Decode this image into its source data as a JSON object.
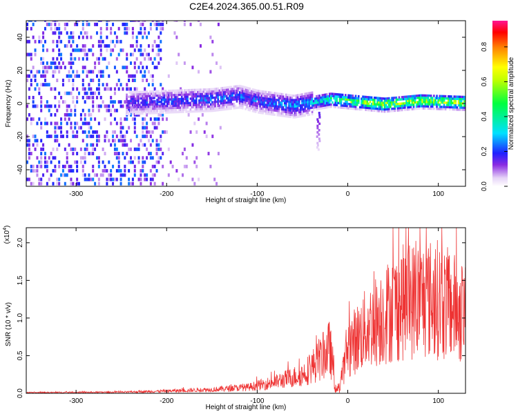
{
  "title": "C2E4.2024.365.00.51.R09",
  "colorbar": {
    "label": "Normalized spectral amplitude",
    "ticks": [
      "0.0",
      "0.2",
      "0.4",
      "0.6",
      "0.8"
    ],
    "range": [
      0,
      0.95
    ]
  },
  "chart_data": [
    {
      "type": "heatmap",
      "xlabel": "Height of straight line (km)",
      "ylabel": "Frequency (Hz)",
      "xlim": [
        -355,
        130
      ],
      "ylim": [
        -50,
        50
      ],
      "xticks": [
        -300,
        -200,
        -100,
        0,
        100
      ],
      "xtick_labels": [
        "-300",
        "-200",
        "-100",
        "0",
        "100"
      ],
      "yticks": [
        -40,
        -20,
        0,
        20,
        40
      ],
      "ytick_labels": [
        "-40",
        "-20",
        "0",
        "20",
        "40"
      ],
      "noise_region": {
        "x_range": [
          -355,
          -205
        ],
        "freq_range": [
          -50,
          50
        ],
        "amplitude_range": [
          0.05,
          0.25
        ]
      },
      "signal_band": {
        "x_range": [
          -245,
          130
        ],
        "center_freq": [
          {
            "x": -245,
            "f": 0
          },
          {
            "x": -200,
            "f": 1
          },
          {
            "x": -150,
            "f": 2
          },
          {
            "x": -120,
            "f": 4
          },
          {
            "x": -100,
            "f": 1
          },
          {
            "x": -60,
            "f": -2
          },
          {
            "x": -40,
            "f": 0
          },
          {
            "x": -20,
            "f": 2
          },
          {
            "x": 0,
            "f": 1
          },
          {
            "x": 40,
            "f": -1
          },
          {
            "x": 80,
            "f": 1
          },
          {
            "x": 130,
            "f": 0
          }
        ],
        "peak_amplitude": [
          {
            "x": -245,
            "a": 0.25
          },
          {
            "x": -150,
            "a": 0.3
          },
          {
            "x": -100,
            "a": 0.3
          },
          {
            "x": -40,
            "a": 0.4
          },
          {
            "x": 0,
            "a": 0.7
          },
          {
            "x": 40,
            "a": 0.8
          },
          {
            "x": 80,
            "a": 0.8
          },
          {
            "x": 130,
            "a": 0.8
          }
        ]
      }
    },
    {
      "type": "line",
      "xlabel": "Height of straight line (km)",
      "ylabel": "SNR (10 * v/v)",
      "y_multiplier_label": "(x10",
      "y_multiplier_exp": "4",
      "y_multiplier_close": ")",
      "xlim": [
        -355,
        130
      ],
      "ylim": [
        0,
        2.2
      ],
      "xticks": [
        -300,
        -200,
        -100,
        0,
        100
      ],
      "xtick_labels": [
        "-300",
        "-200",
        "-100",
        "0",
        "100"
      ],
      "yticks": [
        0,
        0.5,
        1.0,
        1.5,
        2.0
      ],
      "ytick_labels": [
        "0.0",
        "0.5",
        "1.0",
        "1.5",
        "2.0"
      ],
      "color": "#ee3333",
      "envelope": [
        {
          "x": -355,
          "y": 0.01
        },
        {
          "x": -250,
          "y": 0.015
        },
        {
          "x": -200,
          "y": 0.03
        },
        {
          "x": -150,
          "y": 0.05
        },
        {
          "x": -110,
          "y": 0.08
        },
        {
          "x": -80,
          "y": 0.15
        },
        {
          "x": -50,
          "y": 0.25
        },
        {
          "x": -30,
          "y": 0.45
        },
        {
          "x": -20,
          "y": 0.6
        },
        {
          "x": -12,
          "y": 0.1
        },
        {
          "x": -5,
          "y": 0.3
        },
        {
          "x": 0,
          "y": 0.6
        },
        {
          "x": 20,
          "y": 0.85
        },
        {
          "x": 40,
          "y": 1.05
        },
        {
          "x": 60,
          "y": 1.2
        },
        {
          "x": 80,
          "y": 1.25
        },
        {
          "x": 100,
          "y": 1.25
        },
        {
          "x": 115,
          "y": 1.15
        },
        {
          "x": 130,
          "y": 1.05
        }
      ]
    }
  ]
}
